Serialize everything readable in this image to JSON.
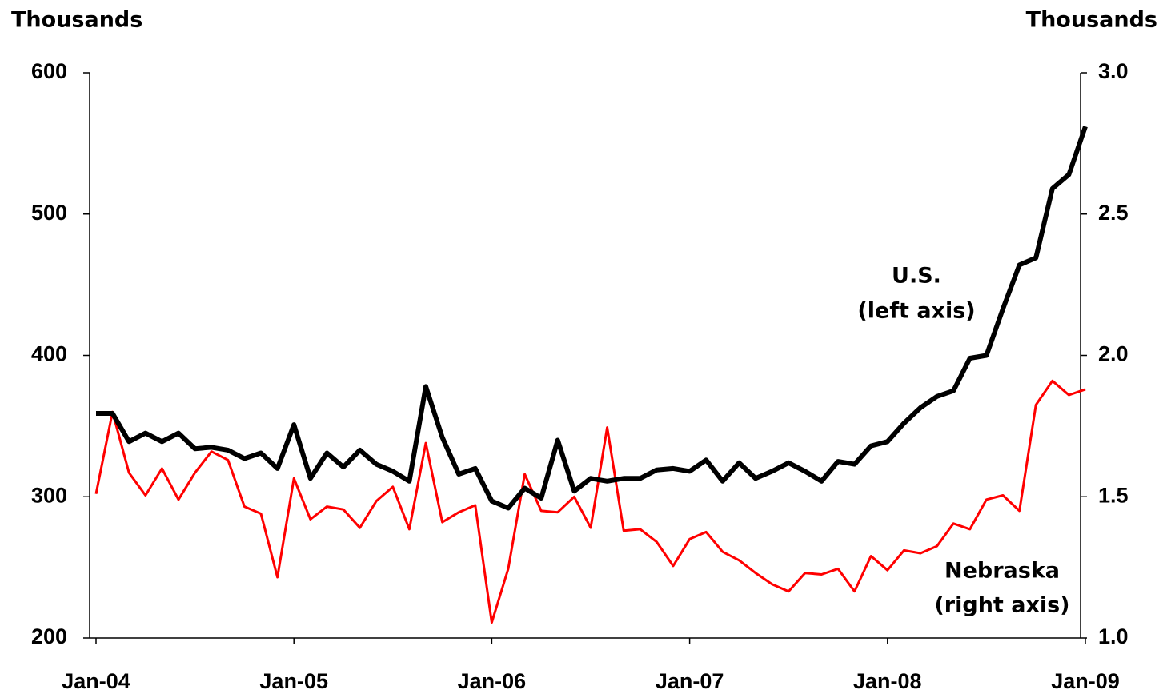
{
  "chart_data": {
    "type": "line",
    "y_label": "Thousands",
    "y2_label": "Thousands",
    "categories": [
      "Jan-04",
      null,
      null,
      null,
      null,
      null,
      null,
      null,
      null,
      null,
      null,
      null,
      "Jan-05",
      null,
      null,
      null,
      null,
      null,
      null,
      null,
      null,
      null,
      null,
      null,
      "Jan-06",
      null,
      null,
      null,
      null,
      null,
      null,
      null,
      null,
      null,
      null,
      null,
      "Jan-07",
      null,
      null,
      null,
      null,
      null,
      null,
      null,
      null,
      null,
      null,
      null,
      "Jan-08",
      null,
      null,
      null,
      null,
      null,
      null,
      null,
      null,
      null,
      null,
      null,
      "Jan-09"
    ],
    "series": [
      {
        "name": "U.S.",
        "color": "#000000",
        "axis": "y",
        "values": [
          359,
          359,
          339,
          345,
          339,
          345,
          334,
          335,
          333,
          327,
          331,
          320,
          351,
          313,
          331,
          321,
          333,
          323,
          318,
          311,
          378,
          342,
          316,
          320,
          297,
          292,
          306,
          299,
          340,
          304,
          313,
          311,
          313,
          313,
          319,
          320,
          318,
          326,
          311,
          324,
          313,
          318,
          324,
          318,
          311,
          325,
          323,
          336,
          339,
          352,
          363,
          371,
          375,
          398,
          400,
          433,
          464,
          469,
          518,
          528,
          562
        ]
      },
      {
        "name": "Nebraska",
        "color": "#ff0000",
        "axis": "y2",
        "values": [
          1.51,
          1.8,
          1.585,
          1.505,
          1.6,
          1.49,
          1.585,
          1.66,
          1.63,
          1.465,
          1.44,
          1.215,
          1.565,
          1.42,
          1.465,
          1.455,
          1.39,
          1.485,
          1.535,
          1.385,
          1.69,
          1.41,
          1.445,
          1.47,
          1.055,
          1.245,
          1.58,
          1.45,
          1.445,
          1.5,
          1.39,
          1.745,
          1.38,
          1.385,
          1.34,
          1.255,
          1.35,
          1.375,
          1.305,
          1.275,
          1.23,
          1.19,
          1.165,
          1.23,
          1.225,
          1.245,
          1.165,
          1.29,
          1.24,
          1.31,
          1.3,
          1.325,
          1.405,
          1.385,
          1.49,
          1.505,
          1.45,
          1.825,
          1.91,
          1.86,
          1.88
        ]
      }
    ],
    "annotations": [
      "U.S.",
      "(left axis)",
      "Nebraska",
      "(right axis)"
    ],
    "ylim": [
      200,
      600
    ],
    "yticks": [
      200,
      300,
      400,
      500,
      600
    ],
    "y2lim": [
      1.0,
      3.0
    ],
    "y2ticks": [
      {
        "value": 1.0,
        "label": "1.0"
      },
      1.5,
      {
        "value": 2.0,
        "label": "2.0"
      },
      2.5,
      {
        "value": 3.0,
        "label": "3.0"
      }
    ],
    "grid": false
  }
}
